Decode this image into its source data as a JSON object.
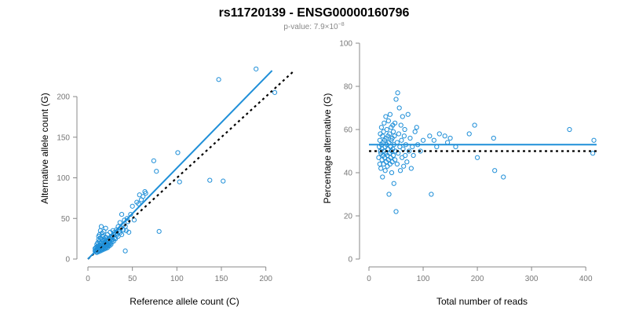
{
  "header": {
    "title": "rs11720139 - ENSG00000160796",
    "pvalue_mantissa": "p-value: 7.9×10",
    "pvalue_exponent": "−8"
  },
  "colors": {
    "points": "#1f8fd8",
    "fit_line": "#1f8fd8",
    "reference_line": "#000000"
  },
  "chart_data": [
    {
      "type": "scatter",
      "xlabel": "Reference allele count (C)",
      "ylabel": "Alternative allele count (G)",
      "xlim": [
        0,
        210
      ],
      "ylim": [
        0,
        230
      ],
      "xticks": [
        0,
        50,
        100,
        150,
        200
      ],
      "yticks": [
        0,
        50,
        100,
        150,
        200
      ],
      "fit_line": {
        "style": "solid",
        "from": [
          0,
          0
        ],
        "to": [
          207,
          232
        ]
      },
      "reference_line": {
        "style": "dotted",
        "from": [
          0,
          0
        ],
        "to": [
          232,
          232
        ]
      },
      "points": [
        [
          8,
          10
        ],
        [
          8,
          13
        ],
        [
          9,
          9
        ],
        [
          9,
          11
        ],
        [
          9,
          14
        ],
        [
          10,
          12
        ],
        [
          10,
          15
        ],
        [
          10,
          18
        ],
        [
          10,
          8
        ],
        [
          11,
          10
        ],
        [
          11,
          13
        ],
        [
          11,
          16
        ],
        [
          11,
          20
        ],
        [
          12,
          9
        ],
        [
          12,
          12
        ],
        [
          12,
          15
        ],
        [
          12,
          24
        ],
        [
          12,
          28
        ],
        [
          13,
          11
        ],
        [
          13,
          14
        ],
        [
          13,
          17
        ],
        [
          13,
          22
        ],
        [
          13,
          30
        ],
        [
          14,
          10
        ],
        [
          14,
          13
        ],
        [
          14,
          19
        ],
        [
          14,
          26
        ],
        [
          14,
          35
        ],
        [
          15,
          12
        ],
        [
          15,
          16
        ],
        [
          15,
          21
        ],
        [
          15,
          40
        ],
        [
          16,
          11
        ],
        [
          16,
          14
        ],
        [
          16,
          18
        ],
        [
          16,
          24
        ],
        [
          16,
          32
        ],
        [
          17,
          13
        ],
        [
          17,
          17
        ],
        [
          17,
          22
        ],
        [
          17,
          28
        ],
        [
          18,
          12
        ],
        [
          18,
          15
        ],
        [
          18,
          20
        ],
        [
          18,
          25
        ],
        [
          18,
          34
        ],
        [
          19,
          14
        ],
        [
          19,
          18
        ],
        [
          19,
          23
        ],
        [
          20,
          13
        ],
        [
          20,
          16
        ],
        [
          20,
          21
        ],
        [
          20,
          27
        ],
        [
          20,
          38
        ],
        [
          21,
          15
        ],
        [
          21,
          19
        ],
        [
          22,
          14
        ],
        [
          22,
          18
        ],
        [
          22,
          24
        ],
        [
          22,
          30
        ],
        [
          23,
          17
        ],
        [
          23,
          22
        ],
        [
          24,
          16
        ],
        [
          24,
          20
        ],
        [
          24,
          26
        ],
        [
          25,
          19
        ],
        [
          25,
          25
        ],
        [
          25,
          33
        ],
        [
          26,
          18
        ],
        [
          26,
          23
        ],
        [
          27,
          21
        ],
        [
          27,
          28
        ],
        [
          28,
          24
        ],
        [
          28,
          35
        ],
        [
          29,
          22
        ],
        [
          29,
          30
        ],
        [
          30,
          26
        ],
        [
          30,
          33
        ],
        [
          31,
          25
        ],
        [
          32,
          29
        ],
        [
          32,
          36
        ],
        [
          33,
          31
        ],
        [
          34,
          28
        ],
        [
          34,
          40
        ],
        [
          35,
          34
        ],
        [
          36,
          32
        ],
        [
          36,
          45
        ],
        [
          37,
          38
        ],
        [
          38,
          30
        ],
        [
          38,
          55
        ],
        [
          40,
          42
        ],
        [
          40,
          36
        ],
        [
          41,
          48
        ],
        [
          42,
          40
        ],
        [
          42,
          10
        ],
        [
          43,
          35
        ],
        [
          44,
          50
        ],
        [
          45,
          46
        ],
        [
          46,
          33
        ],
        [
          48,
          55
        ],
        [
          50,
          65
        ],
        [
          52,
          48
        ],
        [
          55,
          70
        ],
        [
          57,
          68
        ],
        [
          58,
          79
        ],
        [
          60,
          73
        ],
        [
          62,
          77
        ],
        [
          64,
          83
        ],
        [
          65,
          81
        ],
        [
          74,
          121
        ],
        [
          77,
          108
        ],
        [
          80,
          34
        ],
        [
          101,
          131
        ],
        [
          103,
          95
        ],
        [
          137,
          97
        ],
        [
          147,
          221
        ],
        [
          152,
          96
        ],
        [
          189,
          234
        ],
        [
          210,
          205
        ]
      ]
    },
    {
      "type": "scatter",
      "xlabel": "Total number of reads",
      "ylabel": "Percentage alternative (G)",
      "xlim": [
        0,
        420
      ],
      "ylim": [
        0,
        100
      ],
      "xticks": [
        0,
        100,
        200,
        300,
        400
      ],
      "yticks": [
        0,
        20,
        40,
        60,
        80,
        100
      ],
      "fit_line": {
        "style": "solid",
        "y": 53
      },
      "reference_line": {
        "style": "dotted",
        "y": 50
      },
      "points": [
        [
          18,
          47
        ],
        [
          19,
          52
        ],
        [
          20,
          55
        ],
        [
          20,
          44
        ],
        [
          21,
          50
        ],
        [
          21,
          58
        ],
        [
          22,
          42
        ],
        [
          22,
          49
        ],
        [
          23,
          53
        ],
        [
          23,
          61
        ],
        [
          24,
          46
        ],
        [
          24,
          51
        ],
        [
          25,
          57
        ],
        [
          25,
          38
        ],
        [
          26,
          48
        ],
        [
          26,
          54
        ],
        [
          27,
          44
        ],
        [
          27,
          59
        ],
        [
          28,
          50
        ],
        [
          28,
          63
        ],
        [
          29,
          47
        ],
        [
          29,
          55
        ],
        [
          30,
          41
        ],
        [
          30,
          52
        ],
        [
          31,
          66
        ],
        [
          31,
          49
        ],
        [
          32,
          56
        ],
        [
          32,
          45
        ],
        [
          33,
          53
        ],
        [
          33,
          60
        ],
        [
          34,
          48
        ],
        [
          34,
          43
        ],
        [
          35,
          57
        ],
        [
          35,
          51
        ],
        [
          36,
          64
        ],
        [
          36,
          46
        ],
        [
          37,
          54
        ],
        [
          37,
          30
        ],
        [
          38,
          49
        ],
        [
          38,
          58
        ],
        [
          39,
          44
        ],
        [
          39,
          67
        ],
        [
          40,
          52
        ],
        [
          40,
          47
        ],
        [
          41,
          61
        ],
        [
          41,
          55
        ],
        [
          42,
          50
        ],
        [
          42,
          40
        ],
        [
          43,
          56
        ],
        [
          43,
          45
        ],
        [
          44,
          62
        ],
        [
          44,
          51
        ],
        [
          45,
          48
        ],
        [
          45,
          59
        ],
        [
          46,
          35
        ],
        [
          46,
          53
        ],
        [
          47,
          57
        ],
        [
          48,
          46
        ],
        [
          48,
          63
        ],
        [
          49,
          50
        ],
        [
          50,
          22
        ],
        [
          50,
          74
        ],
        [
          52,
          54
        ],
        [
          52,
          44
        ],
        [
          53,
          77
        ],
        [
          54,
          49
        ],
        [
          55,
          58
        ],
        [
          56,
          70
        ],
        [
          57,
          52
        ],
        [
          58,
          41
        ],
        [
          59,
          62
        ],
        [
          60,
          55
        ],
        [
          61,
          47
        ],
        [
          62,
          66
        ],
        [
          63,
          51
        ],
        [
          64,
          43
        ],
        [
          65,
          57
        ],
        [
          66,
          60
        ],
        [
          67,
          48
        ],
        [
          68,
          53
        ],
        [
          70,
          45
        ],
        [
          72,
          67
        ],
        [
          74,
          50
        ],
        [
          76,
          56
        ],
        [
          78,
          42
        ],
        [
          80,
          52
        ],
        [
          82,
          48
        ],
        [
          85,
          59
        ],
        [
          88,
          61
        ],
        [
          90,
          53
        ],
        [
          95,
          50
        ],
        [
          100,
          55
        ],
        [
          112,
          57
        ],
        [
          115,
          30
        ],
        [
          120,
          55
        ],
        [
          125,
          52
        ],
        [
          130,
          58
        ],
        [
          140,
          57
        ],
        [
          145,
          54
        ],
        [
          150,
          56
        ],
        [
          160,
          52
        ],
        [
          185,
          58
        ],
        [
          195,
          62
        ],
        [
          200,
          47
        ],
        [
          230,
          56
        ],
        [
          232,
          41
        ],
        [
          248,
          38
        ],
        [
          370,
          60
        ],
        [
          413,
          49
        ],
        [
          415,
          55
        ]
      ]
    }
  ]
}
